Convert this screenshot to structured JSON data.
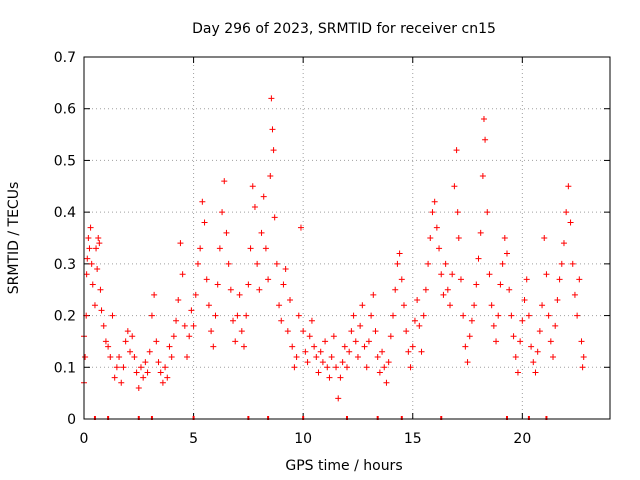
{
  "chart_data": {
    "type": "scatter",
    "title": "Day 296 of 2023, SRMTID for receiver cn15",
    "xlabel": "GPS time / hours",
    "ylabel": "SRMTID / TECUs",
    "xlim": [
      0,
      24
    ],
    "ylim": [
      0,
      0.7
    ],
    "x_ticks": [
      0,
      5,
      10,
      15,
      20
    ],
    "y_ticks": [
      0,
      0.1,
      0.2,
      0.3,
      0.4,
      0.5,
      0.6,
      0.7
    ],
    "x_tick_labels": [
      "0",
      "5",
      "10",
      "15",
      "20"
    ],
    "y_tick_labels": [
      "0",
      "0.1",
      "0.2",
      "0.3",
      "0.4",
      "0.5",
      "0.6",
      "0.7"
    ],
    "grid": true,
    "marker": "+",
    "color": "#ff0000",
    "series": [
      {
        "name": "SRMTID",
        "points": [
          [
            0.0,
            0.07
          ],
          [
            0.0,
            0.16
          ],
          [
            0.05,
            0.12
          ],
          [
            0.1,
            0.2
          ],
          [
            0.12,
            0.28
          ],
          [
            0.15,
            0.31
          ],
          [
            0.2,
            0.35
          ],
          [
            0.25,
            0.33
          ],
          [
            0.3,
            0.37
          ],
          [
            0.35,
            0.3
          ],
          [
            0.4,
            0.26
          ],
          [
            0.5,
            0.22
          ],
          [
            0.55,
            0.33
          ],
          [
            0.6,
            0.29
          ],
          [
            0.65,
            0.35
          ],
          [
            0.7,
            0.34
          ],
          [
            0.75,
            0.25
          ],
          [
            0.8,
            0.21
          ],
          [
            0.9,
            0.18
          ],
          [
            1.0,
            0.15
          ],
          [
            1.1,
            0.14
          ],
          [
            1.2,
            0.12
          ],
          [
            1.3,
            0.2
          ],
          [
            1.4,
            0.08
          ],
          [
            1.5,
            0.1
          ],
          [
            1.6,
            0.12
          ],
          [
            1.7,
            0.07
          ],
          [
            1.8,
            0.1
          ],
          [
            1.9,
            0.15
          ],
          [
            2.0,
            0.17
          ],
          [
            2.1,
            0.13
          ],
          [
            2.2,
            0.16
          ],
          [
            2.3,
            0.12
          ],
          [
            2.4,
            0.09
          ],
          [
            2.5,
            0.06
          ],
          [
            2.6,
            0.1
          ],
          [
            2.7,
            0.08
          ],
          [
            2.8,
            0.11
          ],
          [
            2.9,
            0.09
          ],
          [
            3.0,
            0.13
          ],
          [
            3.1,
            0.2
          ],
          [
            3.2,
            0.24
          ],
          [
            3.3,
            0.15
          ],
          [
            3.4,
            0.11
          ],
          [
            3.5,
            0.09
          ],
          [
            3.6,
            0.07
          ],
          [
            3.7,
            0.1
          ],
          [
            3.8,
            0.08
          ],
          [
            3.9,
            0.14
          ],
          [
            4.0,
            0.12
          ],
          [
            4.1,
            0.16
          ],
          [
            4.2,
            0.19
          ],
          [
            4.3,
            0.23
          ],
          [
            4.4,
            0.34
          ],
          [
            4.5,
            0.28
          ],
          [
            4.6,
            0.18
          ],
          [
            4.7,
            0.12
          ],
          [
            4.8,
            0.16
          ],
          [
            4.9,
            0.21
          ],
          [
            5.0,
            0.18
          ],
          [
            5.1,
            0.24
          ],
          [
            5.2,
            0.3
          ],
          [
            5.3,
            0.33
          ],
          [
            5.4,
            0.42
          ],
          [
            5.5,
            0.38
          ],
          [
            5.6,
            0.27
          ],
          [
            5.7,
            0.22
          ],
          [
            5.8,
            0.17
          ],
          [
            5.9,
            0.14
          ],
          [
            6.0,
            0.2
          ],
          [
            6.1,
            0.26
          ],
          [
            6.2,
            0.33
          ],
          [
            6.3,
            0.4
          ],
          [
            6.4,
            0.46
          ],
          [
            6.5,
            0.36
          ],
          [
            6.6,
            0.3
          ],
          [
            6.7,
            0.25
          ],
          [
            6.8,
            0.19
          ],
          [
            6.9,
            0.15
          ],
          [
            7.0,
            0.2
          ],
          [
            7.1,
            0.24
          ],
          [
            7.2,
            0.17
          ],
          [
            7.3,
            0.14
          ],
          [
            7.4,
            0.2
          ],
          [
            7.5,
            0.26
          ],
          [
            7.6,
            0.33
          ],
          [
            7.7,
            0.45
          ],
          [
            7.8,
            0.41
          ],
          [
            7.9,
            0.3
          ],
          [
            8.0,
            0.25
          ],
          [
            8.1,
            0.36
          ],
          [
            8.2,
            0.43
          ],
          [
            8.3,
            0.33
          ],
          [
            8.4,
            0.27
          ],
          [
            8.5,
            0.47
          ],
          [
            8.55,
            0.62
          ],
          [
            8.6,
            0.56
          ],
          [
            8.65,
            0.52
          ],
          [
            8.7,
            0.39
          ],
          [
            8.8,
            0.3
          ],
          [
            8.9,
            0.22
          ],
          [
            9.0,
            0.19
          ],
          [
            9.1,
            0.26
          ],
          [
            9.2,
            0.29
          ],
          [
            9.3,
            0.17
          ],
          [
            9.4,
            0.23
          ],
          [
            9.5,
            0.14
          ],
          [
            9.6,
            0.1
          ],
          [
            9.7,
            0.12
          ],
          [
            9.8,
            0.2
          ],
          [
            9.9,
            0.37
          ],
          [
            10.0,
            0.17
          ],
          [
            10.1,
            0.13
          ],
          [
            10.2,
            0.11
          ],
          [
            10.3,
            0.16
          ],
          [
            10.4,
            0.19
          ],
          [
            10.5,
            0.14
          ],
          [
            10.6,
            0.12
          ],
          [
            10.7,
            0.09
          ],
          [
            10.8,
            0.13
          ],
          [
            10.9,
            0.11
          ],
          [
            11.0,
            0.15
          ],
          [
            11.1,
            0.1
          ],
          [
            11.2,
            0.08
          ],
          [
            11.3,
            0.12
          ],
          [
            11.4,
            0.16
          ],
          [
            11.5,
            0.1
          ],
          [
            11.6,
            0.04
          ],
          [
            11.7,
            0.08
          ],
          [
            11.8,
            0.11
          ],
          [
            11.9,
            0.14
          ],
          [
            12.0,
            0.1
          ],
          [
            12.1,
            0.13
          ],
          [
            12.2,
            0.17
          ],
          [
            12.3,
            0.2
          ],
          [
            12.4,
            0.15
          ],
          [
            12.5,
            0.12
          ],
          [
            12.6,
            0.18
          ],
          [
            12.7,
            0.22
          ],
          [
            12.8,
            0.14
          ],
          [
            12.9,
            0.1
          ],
          [
            13.0,
            0.15
          ],
          [
            13.1,
            0.2
          ],
          [
            13.2,
            0.24
          ],
          [
            13.3,
            0.17
          ],
          [
            13.4,
            0.12
          ],
          [
            13.5,
            0.09
          ],
          [
            13.6,
            0.13
          ],
          [
            13.7,
            0.1
          ],
          [
            13.8,
            0.07
          ],
          [
            13.9,
            0.11
          ],
          [
            14.0,
            0.16
          ],
          [
            14.1,
            0.2
          ],
          [
            14.2,
            0.25
          ],
          [
            14.3,
            0.3
          ],
          [
            14.4,
            0.32
          ],
          [
            14.5,
            0.27
          ],
          [
            14.6,
            0.22
          ],
          [
            14.7,
            0.17
          ],
          [
            14.8,
            0.13
          ],
          [
            14.9,
            0.1
          ],
          [
            15.0,
            0.14
          ],
          [
            15.1,
            0.19
          ],
          [
            15.2,
            0.23
          ],
          [
            15.3,
            0.18
          ],
          [
            15.4,
            0.13
          ],
          [
            15.5,
            0.2
          ],
          [
            15.6,
            0.25
          ],
          [
            15.7,
            0.3
          ],
          [
            15.8,
            0.35
          ],
          [
            15.9,
            0.4
          ],
          [
            16.0,
            0.42
          ],
          [
            16.1,
            0.37
          ],
          [
            16.2,
            0.33
          ],
          [
            16.3,
            0.28
          ],
          [
            16.4,
            0.24
          ],
          [
            16.5,
            0.3
          ],
          [
            16.6,
            0.25
          ],
          [
            16.7,
            0.22
          ],
          [
            16.8,
            0.28
          ],
          [
            16.9,
            0.45
          ],
          [
            17.0,
            0.52
          ],
          [
            17.05,
            0.4
          ],
          [
            17.1,
            0.35
          ],
          [
            17.2,
            0.27
          ],
          [
            17.3,
            0.2
          ],
          [
            17.4,
            0.14
          ],
          [
            17.5,
            0.11
          ],
          [
            17.6,
            0.16
          ],
          [
            17.7,
            0.19
          ],
          [
            17.8,
            0.22
          ],
          [
            17.9,
            0.26
          ],
          [
            18.0,
            0.31
          ],
          [
            18.1,
            0.36
          ],
          [
            18.2,
            0.47
          ],
          [
            18.25,
            0.58
          ],
          [
            18.3,
            0.54
          ],
          [
            18.4,
            0.4
          ],
          [
            18.5,
            0.28
          ],
          [
            18.6,
            0.22
          ],
          [
            18.7,
            0.18
          ],
          [
            18.8,
            0.15
          ],
          [
            18.9,
            0.2
          ],
          [
            19.0,
            0.26
          ],
          [
            19.1,
            0.3
          ],
          [
            19.2,
            0.35
          ],
          [
            19.3,
            0.32
          ],
          [
            19.4,
            0.25
          ],
          [
            19.5,
            0.2
          ],
          [
            19.6,
            0.16
          ],
          [
            19.7,
            0.12
          ],
          [
            19.8,
            0.09
          ],
          [
            19.9,
            0.15
          ],
          [
            20.0,
            0.19
          ],
          [
            20.1,
            0.23
          ],
          [
            20.2,
            0.27
          ],
          [
            20.3,
            0.2
          ],
          [
            20.4,
            0.14
          ],
          [
            20.5,
            0.11
          ],
          [
            20.6,
            0.09
          ],
          [
            20.7,
            0.13
          ],
          [
            20.8,
            0.17
          ],
          [
            20.9,
            0.22
          ],
          [
            21.0,
            0.35
          ],
          [
            21.1,
            0.28
          ],
          [
            21.2,
            0.2
          ],
          [
            21.3,
            0.15
          ],
          [
            21.4,
            0.12
          ],
          [
            21.5,
            0.18
          ],
          [
            21.6,
            0.23
          ],
          [
            21.7,
            0.27
          ],
          [
            21.8,
            0.3
          ],
          [
            21.9,
            0.34
          ],
          [
            22.0,
            0.4
          ],
          [
            22.1,
            0.45
          ],
          [
            22.2,
            0.38
          ],
          [
            22.3,
            0.3
          ],
          [
            22.4,
            0.24
          ],
          [
            22.5,
            0.2
          ],
          [
            22.6,
            0.27
          ],
          [
            22.7,
            0.15
          ],
          [
            22.75,
            0.1
          ],
          [
            22.8,
            0.12
          ]
        ]
      }
    ],
    "gap_markers_x": [
      0.5,
      1.1,
      2.5,
      3.1,
      5.0,
      7.5,
      8.4,
      10.0,
      12.0,
      13.4,
      14.5,
      16.3,
      19.3,
      20.3,
      21.1
    ]
  }
}
